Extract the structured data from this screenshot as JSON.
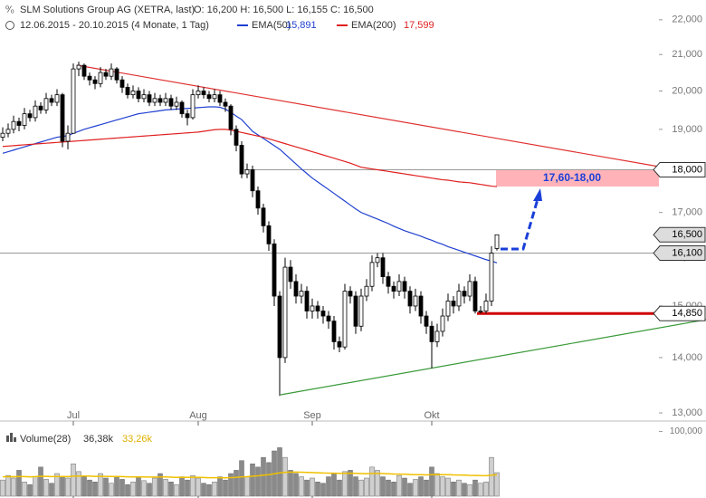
{
  "chart_data": {
    "type": "candlestick",
    "title": "SLM Solutions Group AG (XETRA, last)",
    "quote": "O: 16,200 H: 16,500 L: 16,155 C: 16,500",
    "subtitle": "12.06.2015 - 20.10.2015 (4 Monate, 1 Tag)",
    "categories": [
      null,
      null,
      null,
      null,
      null,
      null,
      null,
      null,
      null,
      null,
      null,
      null,
      null,
      "Jul",
      null,
      null,
      null,
      null,
      null,
      null,
      null,
      null,
      null,
      null,
      null,
      null,
      null,
      null,
      null,
      null,
      null,
      null,
      null,
      null,
      null,
      null,
      "Aug",
      null,
      null,
      null,
      null,
      null,
      null,
      null,
      null,
      null,
      null,
      null,
      null,
      null,
      null,
      null,
      null,
      null,
      null,
      null,
      null,
      "Sep",
      null,
      null,
      null,
      null,
      null,
      null,
      null,
      null,
      null,
      null,
      null,
      null,
      null,
      null,
      null,
      null,
      null,
      null,
      null,
      null,
      null,
      "Okt",
      null,
      null,
      null,
      null,
      null,
      null,
      null,
      null,
      null,
      null,
      null,
      null
    ],
    "open": [
      18800,
      18900,
      19000,
      19200,
      19100,
      19400,
      19300,
      19600,
      19500,
      19800,
      19700,
      19900,
      18700,
      18900,
      20600,
      20700,
      20400,
      20300,
      20200,
      20500,
      20400,
      20600,
      20300,
      20100,
      19900,
      20000,
      19800,
      19900,
      19700,
      19800,
      19700,
      19800,
      19600,
      19700,
      19400,
      19300,
      19900,
      20000,
      19900,
      19800,
      19900,
      19700,
      19600,
      19000,
      18600,
      17900,
      18000,
      17500,
      17100,
      16700,
      16300,
      15200,
      14000,
      15800,
      15500,
      15200,
      15300,
      14900,
      15000,
      14900,
      14800,
      14700,
      14300,
      14200,
      15300,
      15200,
      14600,
      15200,
      15400,
      15900,
      16000,
      15600,
      15400,
      15300,
      15500,
      15300,
      15000,
      15200,
      14800,
      14600,
      14300,
      14500,
      14800,
      15100,
      15000,
      15300,
      15200,
      15500,
      14900,
      14900,
      15100,
      16200
    ],
    "high": [
      19050,
      19150,
      19350,
      19300,
      19550,
      19500,
      19750,
      19700,
      19950,
      19900,
      20050,
      19950,
      19100,
      20750,
      20800,
      20750,
      20500,
      20400,
      20650,
      20600,
      20750,
      20650,
      20400,
      20200,
      20150,
      20100,
      20050,
      20000,
      19950,
      19900,
      19950,
      19900,
      19850,
      19750,
      19500,
      20050,
      20150,
      20100,
      20000,
      20050,
      20000,
      19800,
      19650,
      19100,
      18700,
      18150,
      18100,
      17600,
      17200,
      16800,
      16400,
      15300,
      16000,
      15950,
      15650,
      15450,
      15400,
      15150,
      15100,
      15000,
      14900,
      14800,
      14400,
      15450,
      15400,
      15300,
      15350,
      15550,
      16050,
      16100,
      16100,
      15700,
      15500,
      15650,
      15600,
      15400,
      15350,
      15300,
      14900,
      14700,
      14650,
      14950,
      15250,
      15200,
      15450,
      15400,
      15650,
      15600,
      15000,
      15250,
      16250,
      16500
    ],
    "low": [
      18700,
      18800,
      18900,
      18950,
      19000,
      19200,
      19200,
      19400,
      19400,
      19600,
      19600,
      18550,
      18500,
      18900,
      20400,
      20300,
      20150,
      20050,
      20100,
      20300,
      20300,
      20200,
      19950,
      19800,
      19800,
      19700,
      19700,
      19600,
      19600,
      19600,
      19600,
      19500,
      19500,
      19300,
      19100,
      19250,
      19800,
      19800,
      19700,
      19700,
      19600,
      19450,
      18850,
      18450,
      17800,
      17800,
      17350,
      16950,
      16550,
      16150,
      15000,
      13300,
      13900,
      15350,
      15050,
      15050,
      14750,
      14750,
      14750,
      14650,
      14550,
      14150,
      14100,
      14150,
      15050,
      14450,
      14500,
      15100,
      15300,
      15800,
      15450,
      15250,
      15150,
      15200,
      15150,
      14850,
      14900,
      14650,
      14450,
      13800,
      14200,
      14400,
      14700,
      14850,
      14900,
      15050,
      15100,
      14850,
      14850,
      14850,
      15000,
      16155
    ],
    "close": [
      18900,
      19000,
      19200,
      19100,
      19400,
      19300,
      19600,
      19500,
      19800,
      19700,
      19900,
      18700,
      18900,
      20600,
      20700,
      20400,
      20300,
      20200,
      20500,
      20400,
      20600,
      20300,
      20100,
      19900,
      20000,
      19800,
      19900,
      19700,
      19800,
      19700,
      19800,
      19600,
      19700,
      19400,
      19300,
      19900,
      20000,
      19900,
      19800,
      19900,
      19700,
      19600,
      19000,
      18600,
      17900,
      18000,
      17500,
      17100,
      16700,
      16300,
      15200,
      14000,
      15800,
      15500,
      15200,
      15300,
      14900,
      15000,
      14900,
      14800,
      14700,
      14300,
      14200,
      15300,
      15200,
      14600,
      15200,
      15400,
      15900,
      16000,
      15600,
      15400,
      15300,
      15500,
      15300,
      15000,
      15200,
      14800,
      14600,
      14300,
      14500,
      14800,
      15100,
      15000,
      15300,
      15200,
      15500,
      14900,
      14900,
      15100,
      16100,
      16500
    ],
    "log_scale": true,
    "ylim": [
      12860,
      22590
    ],
    "yticks": [
      {
        "value": 13000,
        "label": "13,000"
      },
      {
        "value": 14000,
        "label": "14,000"
      },
      {
        "value": 15000,
        "label": "15,000"
      },
      {
        "value": 16000,
        "label": "16,000"
      },
      {
        "value": 17000,
        "label": "17,000"
      },
      {
        "value": 18000,
        "label": "18,000"
      },
      {
        "value": 19000,
        "label": "19,000"
      },
      {
        "value": 20000,
        "label": "20,000"
      },
      {
        "value": 21000,
        "label": "21,000"
      },
      {
        "value": 22000,
        "label": "22,000"
      }
    ],
    "series": [
      {
        "name": "EMA(50)",
        "color": "#2040d0",
        "value_label": "15,891",
        "values": [
          18400,
          18440,
          18480,
          18520,
          18560,
          18600,
          18640,
          18680,
          18720,
          18760,
          18800,
          18820,
          18840,
          18900,
          18950,
          19000,
          19040,
          19080,
          19120,
          19160,
          19200,
          19240,
          19280,
          19320,
          19360,
          19400,
          19420,
          19440,
          19460,
          19480,
          19500,
          19510,
          19520,
          19530,
          19540,
          19550,
          19560,
          19570,
          19580,
          19580,
          19570,
          19520,
          19440,
          19340,
          19250,
          19100,
          18950,
          18860,
          18770,
          18680,
          18590,
          18500,
          18380,
          18260,
          18140,
          18020,
          17910,
          17800,
          17710,
          17620,
          17530,
          17440,
          17350,
          17260,
          17170,
          17080,
          17000,
          16950,
          16900,
          16850,
          16800,
          16750,
          16690,
          16640,
          16590,
          16550,
          16510,
          16470,
          16420,
          16380,
          16330,
          16290,
          16240,
          16200,
          16160,
          16120,
          16080,
          16040,
          16000,
          15960,
          15930,
          15891
        ]
      },
      {
        "name": "EMA(200)",
        "color": "#e02020",
        "value_label": "17,599",
        "values": [
          18570,
          18580,
          18590,
          18600,
          18610,
          18620,
          18630,
          18640,
          18650,
          18660,
          18670,
          18680,
          18690,
          18700,
          18710,
          18720,
          18730,
          18740,
          18750,
          18760,
          18770,
          18780,
          18790,
          18800,
          18810,
          18820,
          18830,
          18840,
          18850,
          18860,
          18870,
          18880,
          18890,
          18900,
          18910,
          18920,
          18930,
          18950,
          18970,
          18990,
          19000,
          19000,
          18980,
          18950,
          18920,
          18890,
          18860,
          18830,
          18800,
          18760,
          18720,
          18680,
          18640,
          18600,
          18560,
          18520,
          18480,
          18440,
          18400,
          18360,
          18320,
          18280,
          18240,
          18200,
          18160,
          18110,
          18060,
          18040,
          18020,
          18000,
          17980,
          17960,
          17940,
          17920,
          17900,
          17880,
          17860,
          17840,
          17820,
          17800,
          17780,
          17760,
          17750,
          17730,
          17710,
          17700,
          17690,
          17670,
          17650,
          17630,
          17610,
          17599
        ]
      }
    ],
    "price_markers": [
      {
        "value": 18000,
        "label": "18,000"
      },
      {
        "value": 16500,
        "label": "16,500"
      },
      {
        "value": 16100,
        "label": "16,100"
      },
      {
        "value": 14850,
        "label": "14,850"
      }
    ],
    "zone": {
      "low": 17600,
      "high": 18000,
      "label": "17,60-18,00"
    },
    "volume": {
      "name": "Volume(28)",
      "value_label": "36,38k",
      "values": [
        25000,
        32000,
        28000,
        40000,
        22000,
        18000,
        30000,
        45000,
        26000,
        20000,
        35000,
        30000,
        28000,
        50000,
        38000,
        30000,
        25000,
        22000,
        35000,
        28000,
        20000,
        30000,
        26000,
        18000,
        22000,
        30000,
        24000,
        20000,
        28000,
        35000,
        26000,
        22000,
        18000,
        30000,
        25000,
        32000,
        28000,
        20000,
        18000,
        22000,
        30000,
        25000,
        35000,
        40000,
        55000,
        30000,
        50000,
        45000,
        60000,
        52000,
        70000,
        75000,
        60000,
        40000,
        35000,
        30000,
        25000,
        28000,
        22000,
        20000,
        30000,
        35000,
        25000,
        38000,
        40000,
        30000,
        25000,
        28000,
        45000,
        40000,
        30000,
        25000,
        22000,
        32000,
        28000,
        20000,
        26000,
        30000,
        25000,
        45000,
        35000,
        30000,
        28000,
        22000,
        25000,
        20000,
        18000,
        25000,
        20000,
        22000,
        60000,
        36380
      ],
      "average": {
        "color": "#f0c000",
        "value_label": "33,26k",
        "values": [
          30000,
          30200,
          30100,
          30500,
          30300,
          30000,
          30200,
          30800,
          30600,
          30300,
          30500,
          30400,
          30300,
          31000,
          31200,
          31100,
          30900,
          30700,
          30800,
          30700,
          30400,
          30400,
          30300,
          30000,
          29800,
          29900,
          29700,
          29500,
          29600,
          29800,
          29700,
          29400,
          29100,
          29200,
          29100,
          29300,
          29200,
          28900,
          28600,
          28500,
          28600,
          28400,
          28700,
          29100,
          30000,
          30100,
          30900,
          31500,
          32500,
          33300,
          34600,
          36000,
          36900,
          37100,
          37200,
          37100,
          36800,
          36600,
          36200,
          35800,
          35700,
          35600,
          35300,
          35400,
          35500,
          35300,
          35000,
          34800,
          35100,
          35200,
          35000,
          34700,
          34300,
          34200,
          34000,
          33600,
          33300,
          33200,
          32900,
          33300,
          33400,
          33300,
          33200,
          32900,
          32800,
          32500,
          32200,
          32100,
          31800,
          31700,
          32600,
          33260
        ]
      },
      "ylim": [
        0,
        112000
      ],
      "yticks": [
        {
          "value": 100000,
          "label": "100,000"
        }
      ]
    }
  }
}
